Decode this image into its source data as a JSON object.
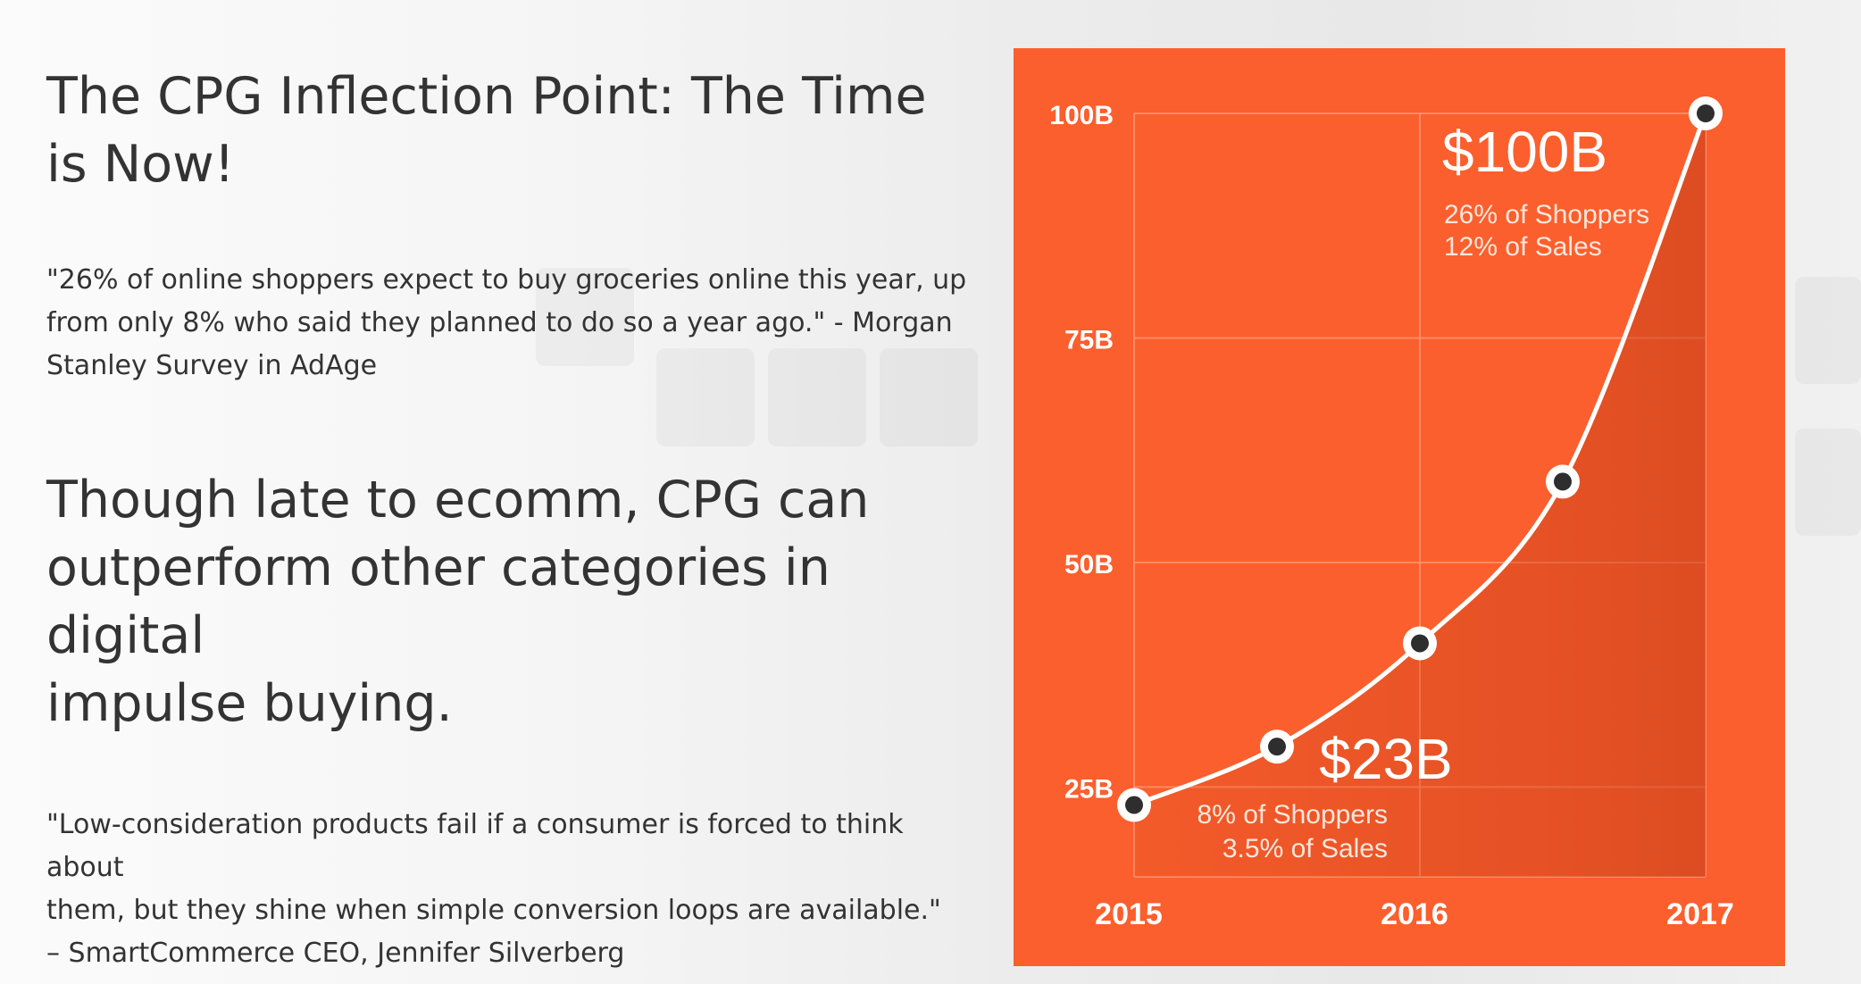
{
  "headline": "The CPG Inflection Point: The Time is Now!",
  "quote_1": {
    "lines": [
      "\"26% of online shoppers expect to buy groceries online this year, up",
      "from only 8% who said they planned to do so a year ago.\" - Morgan",
      "Stanley Survey in AdAge"
    ]
  },
  "subheadline": {
    "lines": [
      "Though late to ecomm, CPG can",
      "outperform other categories in digital",
      "impulse buying."
    ]
  },
  "quote_2": {
    "lines": [
      "\"Low-consideration products fail if a consumer is forced to think about",
      "them, but they shine when simple conversion loops are available.\"",
      "– SmartCommerce CEO, Jennifer Silverberg"
    ]
  },
  "colors": {
    "chart_background": "#fb5f2d",
    "grid": "#ff9a78",
    "line": "#ffffff",
    "point_fill": "#2e2e2e",
    "area_shade": "#c9401a"
  },
  "chart_data": {
    "type": "line",
    "title": "",
    "xlabel": "",
    "ylabel": "",
    "x_ticks": [
      "2015",
      "2016",
      "2017"
    ],
    "y_ticks": [
      "25B",
      "50B",
      "75B",
      "100B"
    ],
    "xlim": [
      2015,
      2017
    ],
    "ylim": [
      15,
      100
    ],
    "grid": true,
    "series": [
      {
        "points": [
          {
            "x": 2015,
            "y": 23
          },
          {
            "x": 2015.5,
            "y": 29.5
          },
          {
            "x": 2016,
            "y": 41
          },
          {
            "x": 2016.5,
            "y": 59
          },
          {
            "x": 2017,
            "y": 100
          }
        ]
      }
    ],
    "annotations": [
      {
        "value": "$100B",
        "details": [
          "26% of Shoppers",
          "12% of Sales"
        ]
      },
      {
        "value": "$23B",
        "details": [
          "8% of Shoppers",
          "3.5% of Sales"
        ]
      }
    ]
  }
}
